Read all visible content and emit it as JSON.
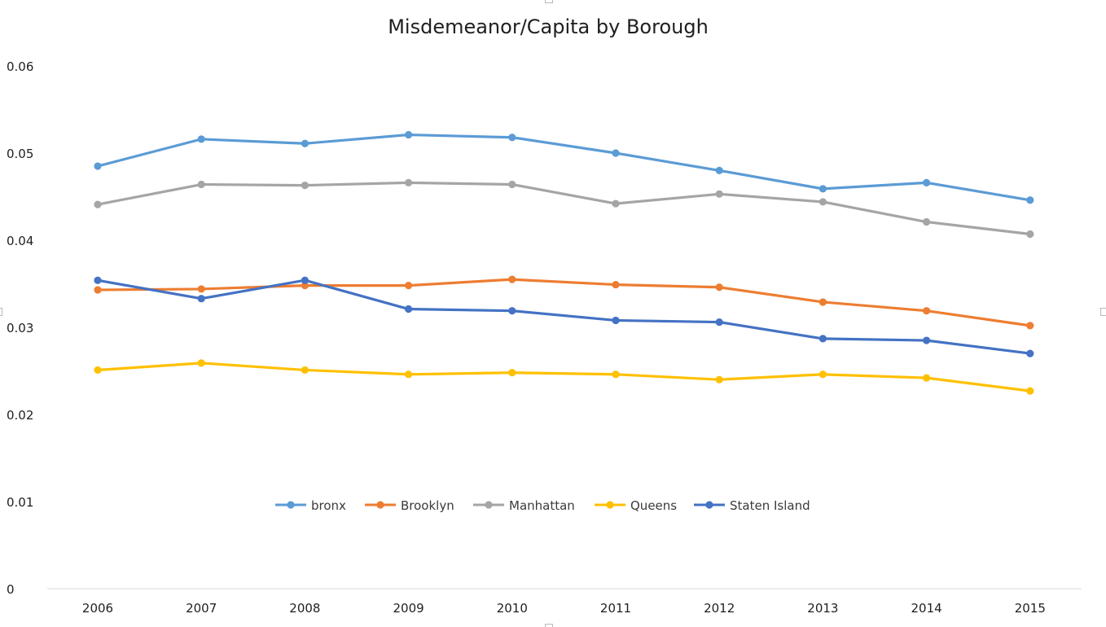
{
  "chart_data": {
    "type": "line",
    "title": "Misdemeanor/Capita by Borough",
    "xlabel": "",
    "ylabel": "",
    "categories": [
      "2006",
      "2007",
      "2008",
      "2009",
      "2010",
      "2011",
      "2012",
      "2013",
      "2014",
      "2015"
    ],
    "ylim": [
      0,
      0.06
    ],
    "yticks": [
      "0",
      "0.01",
      "0.02",
      "0.03",
      "0.04",
      "0.05",
      "0.06"
    ],
    "grid": false,
    "legend_position": "bottom-center",
    "series": [
      {
        "name": "bronx",
        "color": "#5B9BD5",
        "values": [
          0.0485,
          0.0516,
          0.0511,
          0.0521,
          0.0518,
          0.05,
          0.048,
          0.0459,
          0.0466,
          0.0446
        ]
      },
      {
        "name": "Brooklyn",
        "color": "#ED7D31",
        "values": [
          0.0343,
          0.0344,
          0.0348,
          0.0348,
          0.0355,
          0.0349,
          0.0346,
          0.0329,
          0.0319,
          0.0302
        ]
      },
      {
        "name": "Manhattan",
        "color": "#A5A5A5",
        "values": [
          0.0441,
          0.0464,
          0.0463,
          0.0466,
          0.0464,
          0.0442,
          0.0453,
          0.0444,
          0.0421,
          0.0407
        ]
      },
      {
        "name": "Queens",
        "color": "#FFC000",
        "values": [
          0.0251,
          0.0259,
          0.0251,
          0.0246,
          0.0248,
          0.0246,
          0.024,
          0.0246,
          0.0242,
          0.0227
        ]
      },
      {
        "name": "Staten Island",
        "color": "#4472C4",
        "values": [
          0.0354,
          0.0333,
          0.0354,
          0.0321,
          0.0319,
          0.0308,
          0.0306,
          0.0287,
          0.0285,
          0.027
        ]
      }
    ]
  }
}
